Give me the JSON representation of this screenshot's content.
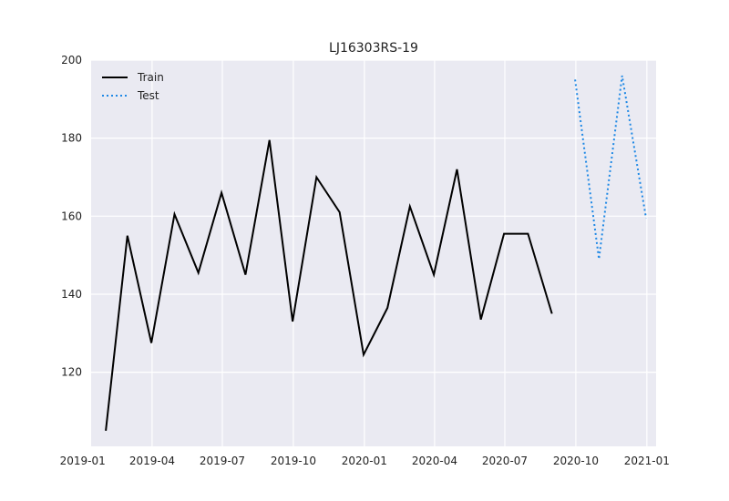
{
  "chart_data": {
    "type": "line",
    "title": "LJ16303RS-19",
    "xlabel": "",
    "ylabel": "",
    "ylim": [
      101,
      200
    ],
    "xlim": [
      "2019-01-12",
      "2021-01-13"
    ],
    "x_ticks": [
      "2019-01",
      "2019-04",
      "2019-07",
      "2019-10",
      "2020-01",
      "2020-04",
      "2020-07",
      "2020-10",
      "2021-01"
    ],
    "y_ticks": [
      120,
      140,
      160,
      180,
      200
    ],
    "grid": true,
    "legend_position": "top-left",
    "colors": {
      "background": "#eaeaf2",
      "grid": "#ffffff",
      "train": "#000000",
      "test": "#1e88e5"
    },
    "series": [
      {
        "name": "Train",
        "style": "solid",
        "points": [
          {
            "x": "2019-01-31",
            "y": 105
          },
          {
            "x": "2019-02-28",
            "y": 155
          },
          {
            "x": "2019-03-31",
            "y": 127.5
          },
          {
            "x": "2019-04-30",
            "y": 160.5
          },
          {
            "x": "2019-05-31",
            "y": 145.5
          },
          {
            "x": "2019-06-30",
            "y": 166
          },
          {
            "x": "2019-07-31",
            "y": 145
          },
          {
            "x": "2019-08-31",
            "y": 179.5
          },
          {
            "x": "2019-09-30",
            "y": 133
          },
          {
            "x": "2019-10-31",
            "y": 170
          },
          {
            "x": "2019-11-30",
            "y": 161
          },
          {
            "x": "2019-12-31",
            "y": 124.5
          },
          {
            "x": "2020-01-31",
            "y": 136.5
          },
          {
            "x": "2020-02-29",
            "y": 162.5
          },
          {
            "x": "2020-03-31",
            "y": 145
          },
          {
            "x": "2020-04-30",
            "y": 172
          },
          {
            "x": "2020-05-31",
            "y": 133.5
          },
          {
            "x": "2020-06-30",
            "y": 155.5
          },
          {
            "x": "2020-07-31",
            "y": 155.5
          },
          {
            "x": "2020-08-31",
            "y": 135
          }
        ]
      },
      {
        "name": "Test",
        "style": "dotted",
        "points": [
          {
            "x": "2020-09-30",
            "y": 195
          },
          {
            "x": "2020-10-31",
            "y": 149
          },
          {
            "x": "2020-11-30",
            "y": 196
          },
          {
            "x": "2020-12-31",
            "y": 159.5
          }
        ]
      }
    ]
  }
}
